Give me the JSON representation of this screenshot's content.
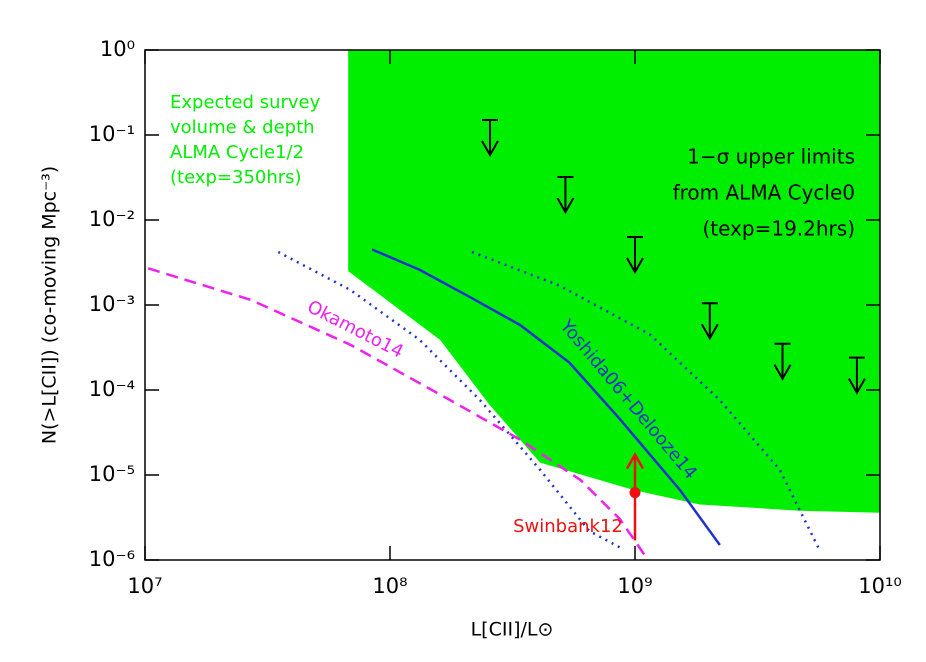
{
  "chart_data": {
    "type": "line",
    "xlabel": "L[CII]/L⊙",
    "ylabel": "N(>L[CII]) (co-moving Mpc⁻³)",
    "xlog": true,
    "ylog": true,
    "xlim": [
      10000000.0,
      10000000000.0
    ],
    "ylim": [
      1e-06,
      1
    ],
    "xticks": [
      {
        "value": 10000000.0,
        "label": "10⁷"
      },
      {
        "value": 100000000.0,
        "label": "10⁸"
      },
      {
        "value": 1000000000.0,
        "label": "10⁹"
      },
      {
        "value": 10000000000.0,
        "label": "10¹⁰"
      }
    ],
    "yticks": [
      {
        "value": 1e-06,
        "label": "10⁻⁶"
      },
      {
        "value": 1e-05,
        "label": "10⁻⁵"
      },
      {
        "value": 0.0001,
        "label": "10⁻⁴"
      },
      {
        "value": 0.001,
        "label": "10⁻³"
      },
      {
        "value": 0.01,
        "label": "10⁻²"
      },
      {
        "value": 0.1,
        "label": "10⁻¹"
      },
      {
        "value": 1,
        "label": "10⁰"
      }
    ],
    "region": {
      "color": "#00ee00",
      "x": [
        67500000.0,
        67500000.0,
        160000000.0,
        256000000.0,
        410000000.0,
        1000000000.0,
        1840000000.0,
        4700000000.0,
        10000000000.0,
        10000000000.0
      ],
      "values": [
        1,
        0.0025,
        0.00039,
        6.6e-05,
        1.4e-05,
        6.6e-06,
        4.5e-06,
        3.8e-06,
        3.6e-06,
        1
      ]
    },
    "series": [
      {
        "name": "Yoshida06+Delooze14",
        "color": "#2233cc",
        "style": "solid",
        "x": [
          84500000.0,
          132000000.0,
          212000000.0,
          340000000.0,
          540000000.0,
          870000000.0,
          1530000000.0,
          2220000000.0
        ],
        "values": [
          0.0045,
          0.0026,
          0.00124,
          0.00058,
          0.00021,
          4.5e-05,
          6.6e-06,
          1.5e-06
        ]
      },
      {
        "color": "#2233cc",
        "style": "dotted",
        "x": [
          35000000.0,
          69000000.0,
          132000000.0,
          233000000.0,
          410000000.0,
          650000000.0,
          870000000.0
        ],
        "values": [
          0.0042,
          0.0015,
          0.00039,
          7.6e-05,
          1.15e-05,
          2.2e-06,
          1.4e-06
        ]
      },
      {
        "color": "#2233cc",
        "style": "dotted",
        "x": [
          216000000.0,
          490000000.0,
          1150000000.0,
          2220000000.0,
          3900000000.0,
          5600000000.0
        ],
        "values": [
          0.0042,
          0.0017,
          0.00045,
          7.6e-05,
          1.15e-05,
          1.4e-06
        ]
      },
      {
        "name": "Okamoto14",
        "color": "#ee22ee",
        "style": "dashed",
        "x": [
          10300000.0,
          27000000.0,
          69000000.0,
          176000000.0,
          340000000.0,
          600000000.0,
          870000000.0,
          1130000000.0
        ],
        "values": [
          0.0027,
          0.00115,
          0.00034,
          7.6e-05,
          2.6e-05,
          8.7e-06,
          3e-06,
          1e-06
        ]
      },
      {
        "name": "Swinbank12",
        "color": "#ee1111",
        "style": "lower-limit",
        "x": [
          1000000000.0
        ],
        "values": [
          6.2e-06
        ],
        "lower": [
          1.7e-06
        ]
      }
    ],
    "upper_limits": {
      "color": "#000000",
      "x": [
        256000000.0,
        520000000.0,
        1000000000.0,
        2020000000.0,
        4000000000.0,
        8050000000.0
      ],
      "values": [
        0.15,
        0.032,
        0.0063,
        0.00105,
        0.00035,
        0.00024
      ]
    },
    "annotations": {
      "survey": {
        "color": "#00ee00",
        "lines": [
          "Expected survey",
          "volume & depth",
          "ALMA Cycle1/2",
          "(texp=350hrs)"
        ]
      },
      "limits": {
        "color": "#000000",
        "lines": [
          "1−σ upper limits",
          "from ALMA Cycle0",
          "(texp=19.2hrs)"
        ]
      }
    }
  }
}
